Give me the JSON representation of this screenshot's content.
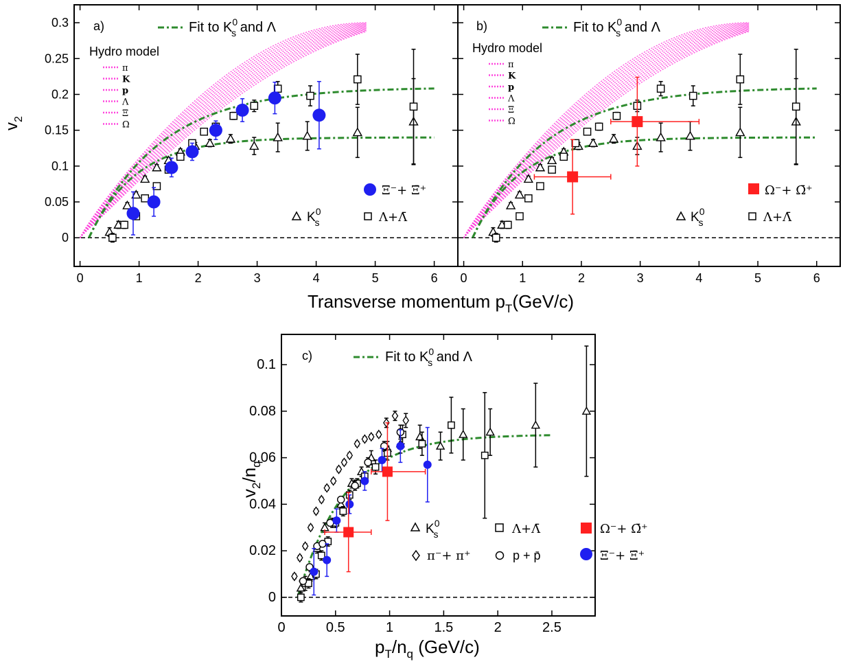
{
  "colors": {
    "fit": "#2e8b2e",
    "hydro": "#ff44dd",
    "xi": "#1f1ff0",
    "omega": "#ff2020",
    "marker": "#000000"
  },
  "axis_titles": {
    "ab_x": "Transverse momentum p",
    "ab_x_sub": "T",
    "ab_x_unit": "(GeV/c)",
    "ab_y": "v",
    "ab_y_sub": "2",
    "c_x": "p",
    "c_x_sub1": "T",
    "c_x_mid": "/n",
    "c_x_sub2": "q",
    "c_x_unit": " (GeV/c)",
    "c_y": "v",
    "c_y_sub1": "2",
    "c_y_mid": "/n",
    "c_y_sub2": "q"
  },
  "legend": {
    "fit": "Fit to K",
    "fit_sup": "0",
    "fit_sub": "s",
    "fit_and": " and Λ",
    "hydro_title": "Hydro model",
    "hydro_items": [
      "π",
      "K",
      "p",
      "Λ",
      "Ξ",
      "Ω"
    ],
    "ks0": "K",
    "ks0_sup": "0",
    "ks0_sub": "s",
    "lambda": "Λ+Λ̄",
    "xi": "Ξ⁻+ Ξ̄⁺",
    "omega": "Ω⁻+ Ω̄⁺",
    "pion": "π⁻+ π⁺",
    "proton": "p + p̄"
  },
  "chart_data": [
    {
      "panel": "a",
      "label": "a)",
      "type": "scatter",
      "xlim": [
        -0.1,
        6.4
      ],
      "ylim": [
        -0.04,
        0.325
      ],
      "xticks": [
        "0",
        "1",
        "2",
        "3",
        "4",
        "5",
        "6"
      ],
      "yticks": [
        "0",
        "0.05",
        "0.1",
        "0.15",
        "0.2",
        "0.25",
        "0.3"
      ],
      "xlabel": "Transverse momentum pT(GeV/c)",
      "ylabel": "v2",
      "series": [
        {
          "name": "K0s",
          "marker": "triangle",
          "x": [
            0.5,
            0.65,
            0.8,
            0.95,
            1.1,
            1.3,
            1.5,
            1.7,
            1.95,
            2.2,
            2.55,
            2.95,
            3.35,
            3.85,
            4.7,
            5.65
          ],
          "y": [
            0.008,
            0.018,
            0.045,
            0.06,
            0.082,
            0.098,
            0.108,
            0.12,
            0.128,
            0.132,
            0.138,
            0.128,
            0.14,
            0.142,
            0.147,
            0.162
          ],
          "err": [
            0.006,
            0.005,
            0.004,
            0.004,
            0.004,
            0.004,
            0.004,
            0.004,
            0.005,
            0.005,
            0.006,
            0.012,
            0.02,
            0.02,
            0.035,
            0.06
          ]
        },
        {
          "name": "Lambda+antiLambda",
          "marker": "square",
          "x": [
            0.55,
            0.75,
            0.95,
            1.1,
            1.3,
            1.5,
            1.7,
            1.9,
            2.1,
            2.3,
            2.6,
            2.95,
            3.35,
            3.9,
            4.7,
            5.65
          ],
          "y": [
            0.0,
            0.018,
            0.03,
            0.055,
            0.072,
            0.095,
            0.113,
            0.132,
            0.148,
            0.155,
            0.17,
            0.184,
            0.208,
            0.198,
            0.221,
            0.183
          ],
          "err": [
            0.006,
            0.005,
            0.004,
            0.004,
            0.004,
            0.004,
            0.004,
            0.004,
            0.004,
            0.005,
            0.005,
            0.008,
            0.01,
            0.014,
            0.035,
            0.08
          ]
        },
        {
          "name": "Xi-+antiXi+",
          "marker": "circle",
          "color": "#1f1ff0",
          "x": [
            0.9,
            1.25,
            1.55,
            1.9,
            2.3,
            2.75,
            3.3,
            4.05
          ],
          "y": [
            0.034,
            0.05,
            0.098,
            0.12,
            0.15,
            0.178,
            0.195,
            0.171
          ],
          "err": [
            0.03,
            0.02,
            0.013,
            0.012,
            0.013,
            0.016,
            0.022,
            0.047
          ]
        }
      ],
      "fits": [
        {
          "name": "Fit to K0s and Lambda",
          "plateau": [
            0.14,
            0.21
          ]
        }
      ]
    },
    {
      "panel": "b",
      "label": "b)",
      "type": "scatter",
      "xlim": [
        -0.1,
        6.4
      ],
      "ylim": [
        -0.04,
        0.325
      ],
      "xticks": [
        "0",
        "1",
        "2",
        "3",
        "4",
        "5",
        "6"
      ],
      "yticks": [
        "0",
        "0.05",
        "0.1",
        "0.15",
        "0.2",
        "0.25",
        "0.3"
      ],
      "series": [
        {
          "name": "K0s",
          "marker": "triangle",
          "x": [
            0.5,
            0.65,
            0.8,
            0.95,
            1.1,
            1.3,
            1.5,
            1.7,
            1.95,
            2.2,
            2.55,
            2.95,
            3.35,
            3.85,
            4.7,
            5.65
          ],
          "y": [
            0.008,
            0.018,
            0.045,
            0.06,
            0.082,
            0.098,
            0.108,
            0.12,
            0.128,
            0.132,
            0.138,
            0.128,
            0.14,
            0.142,
            0.147,
            0.162
          ],
          "err": [
            0.006,
            0.005,
            0.004,
            0.004,
            0.004,
            0.004,
            0.004,
            0.004,
            0.005,
            0.005,
            0.006,
            0.012,
            0.02,
            0.02,
            0.035,
            0.06
          ]
        },
        {
          "name": "Lambda+antiLambda",
          "marker": "square",
          "x": [
            0.55,
            0.75,
            0.95,
            1.1,
            1.3,
            1.5,
            1.7,
            1.9,
            2.1,
            2.3,
            2.6,
            2.95,
            3.35,
            3.9,
            4.7,
            5.65
          ],
          "y": [
            0.0,
            0.018,
            0.03,
            0.055,
            0.072,
            0.095,
            0.113,
            0.132,
            0.148,
            0.155,
            0.17,
            0.184,
            0.208,
            0.198,
            0.221,
            0.183
          ],
          "err": [
            0.006,
            0.005,
            0.004,
            0.004,
            0.004,
            0.004,
            0.004,
            0.004,
            0.004,
            0.005,
            0.005,
            0.008,
            0.01,
            0.014,
            0.035,
            0.08
          ]
        },
        {
          "name": "Omega-+antiOmega+",
          "marker": "filled-square",
          "color": "#ff2020",
          "x": [
            1.85,
            2.95
          ],
          "y": [
            0.085,
            0.162
          ],
          "err": [
            0.052,
            0.062
          ],
          "xlo": [
            1.2,
            2.5
          ],
          "xhi": [
            2.5,
            4.0
          ]
        }
      ],
      "fits": [
        {
          "name": "Fit to K0s and Lambda",
          "plateau": [
            0.14,
            0.21
          ]
        }
      ]
    },
    {
      "panel": "c",
      "label": "c)",
      "type": "scatter",
      "xlim": [
        0,
        2.9
      ],
      "ylim": [
        -0.008,
        0.113
      ],
      "xticks": [
        "0",
        "0.5",
        "1",
        "1.5",
        "2",
        "2.5"
      ],
      "yticks": [
        "0",
        "0.02",
        "0.04",
        "0.06",
        "0.08",
        "0.1"
      ],
      "xlabel": "pT/nq (GeV/c)",
      "ylabel": "v2/nq",
      "series": [
        {
          "name": "K0s",
          "marker": "triangle",
          "x": [
            0.18,
            0.22,
            0.27,
            0.33,
            0.4,
            0.47,
            0.55,
            0.65,
            0.74,
            0.83,
            0.98,
            1.1,
            1.28,
            1.47,
            1.68,
            1.93,
            2.35,
            2.82
          ],
          "y": [
            0.004,
            0.006,
            0.009,
            0.021,
            0.03,
            0.032,
            0.04,
            0.049,
            0.054,
            0.06,
            0.064,
            0.066,
            0.069,
            0.065,
            0.07,
            0.071,
            0.074,
            0.08
          ],
          "err": [
            0.003,
            0.003,
            0.002,
            0.002,
            0.002,
            0.002,
            0.002,
            0.002,
            0.002,
            0.003,
            0.003,
            0.004,
            0.005,
            0.006,
            0.011,
            0.01,
            0.018,
            0.028
          ]
        },
        {
          "name": "Lambda+antiLambda",
          "marker": "square",
          "x": [
            0.18,
            0.25,
            0.32,
            0.37,
            0.43,
            0.5,
            0.57,
            0.63,
            0.7,
            0.77,
            0.87,
            0.98,
            1.12,
            1.3,
            1.57,
            1.88
          ],
          "y": [
            0.0,
            0.006,
            0.01,
            0.018,
            0.024,
            0.032,
            0.037,
            0.044,
            0.049,
            0.052,
            0.056,
            0.062,
            0.07,
            0.066,
            0.074,
            0.061
          ],
          "err": [
            0.002,
            0.002,
            0.002,
            0.002,
            0.002,
            0.002,
            0.002,
            0.002,
            0.002,
            0.002,
            0.003,
            0.003,
            0.004,
            0.005,
            0.012,
            0.027
          ]
        },
        {
          "name": "pi-+pi+",
          "marker": "diamond",
          "x": [
            0.12,
            0.17,
            0.22,
            0.27,
            0.32,
            0.37,
            0.42,
            0.48,
            0.53,
            0.58,
            0.63,
            0.7,
            0.77,
            0.83,
            0.9,
            0.97,
            1.05,
            1.15
          ],
          "y": [
            0.009,
            0.017,
            0.022,
            0.03,
            0.037,
            0.042,
            0.047,
            0.05,
            0.055,
            0.058,
            0.061,
            0.066,
            0.068,
            0.069,
            0.07,
            0.075,
            0.078,
            0.076
          ],
          "err": [
            0.001,
            0.001,
            0.001,
            0.001,
            0.001,
            0.001,
            0.001,
            0.001,
            0.001,
            0.001,
            0.001,
            0.001,
            0.001,
            0.001,
            0.001,
            0.002,
            0.002,
            0.003
          ]
        },
        {
          "name": "p+antip",
          "marker": "open-circle",
          "x": [
            0.2,
            0.26,
            0.33,
            0.38,
            0.45,
            0.55,
            0.68,
            0.8,
            0.95,
            1.1
          ],
          "y": [
            0.007,
            0.013,
            0.022,
            0.023,
            0.032,
            0.042,
            0.048,
            0.058,
            0.065,
            0.071
          ],
          "err": [
            0.001,
            0.001,
            0.001,
            0.001,
            0.001,
            0.001,
            0.002,
            0.002,
            0.002,
            0.003
          ]
        },
        {
          "name": "Xi-+antiXi+",
          "marker": "circle",
          "color": "#1f1ff0",
          "x": [
            0.3,
            0.42,
            0.51,
            0.63,
            0.77,
            0.93,
            1.1,
            1.35
          ],
          "y": [
            0.011,
            0.016,
            0.033,
            0.04,
            0.05,
            0.059,
            0.065,
            0.057
          ],
          "err": [
            0.01,
            0.007,
            0.005,
            0.004,
            0.004,
            0.005,
            0.007,
            0.016
          ]
        },
        {
          "name": "Omega-+antiOmega+",
          "marker": "filled-square",
          "color": "#ff2020",
          "x": [
            0.62,
            0.98
          ],
          "y": [
            0.028,
            0.054
          ],
          "err": [
            0.017,
            0.021
          ],
          "xlo": [
            0.4,
            0.83
          ],
          "xhi": [
            0.83,
            1.33
          ]
        }
      ],
      "fits": [
        {
          "name": "Fit to K0s and Lambda",
          "plateau": [
            0.07
          ]
        }
      ]
    }
  ]
}
